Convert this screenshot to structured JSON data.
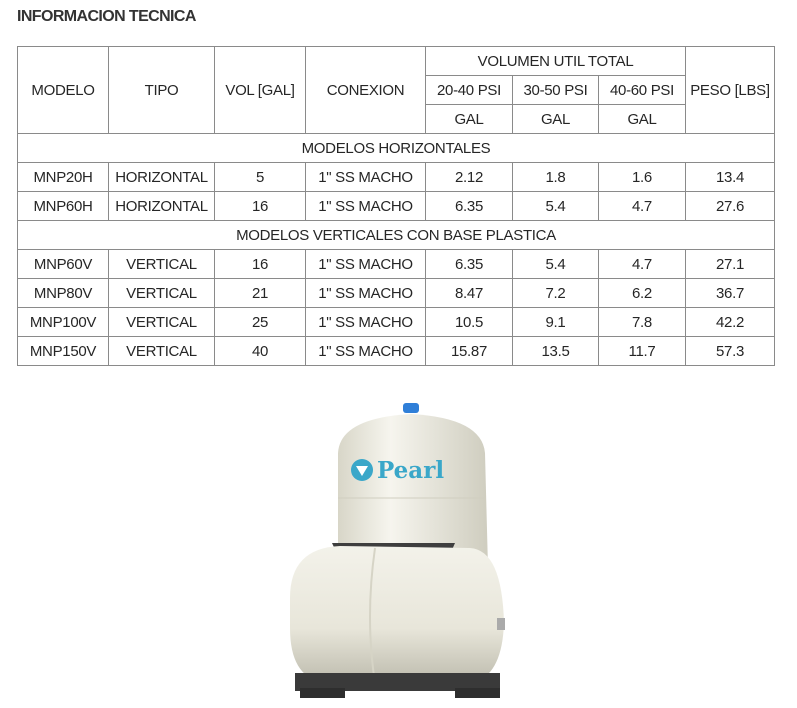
{
  "title": "INFORMACION TECNICA",
  "table": {
    "headers": {
      "modelo": "MODELO",
      "tipo": "TIPO",
      "vol": "VOL [GAL]",
      "conexion": "CONEXION",
      "volumen_util": "VOLUMEN UTIL TOTAL",
      "psi": [
        "20-40 PSI",
        "30-50 PSI",
        "40-60 PSI"
      ],
      "units": [
        "GAL",
        "GAL",
        "GAL"
      ],
      "peso": "PESO [LBS]"
    },
    "groups": [
      {
        "label": "MODELOS HORIZONTALES",
        "rows": [
          [
            "MNP20H",
            "HORIZONTAL",
            "5",
            "1\" SS MACHO",
            "2.12",
            "1.8",
            "1.6",
            "13.4"
          ],
          [
            "MNP60H",
            "HORIZONTAL",
            "16",
            "1\" SS MACHO",
            "6.35",
            "5.4",
            "4.7",
            "27.6"
          ]
        ]
      },
      {
        "label": "MODELOS VERTICALES CON BASE PLASTICA",
        "rows": [
          [
            "MNP60V",
            "VERTICAL",
            "16",
            "1\" SS MACHO",
            "6.35",
            "5.4",
            "4.7",
            "27.1"
          ],
          [
            "MNP80V",
            "VERTICAL",
            "21",
            "1\" SS MACHO",
            "8.47",
            "7.2",
            "6.2",
            "36.7"
          ],
          [
            "MNP100V",
            "VERTICAL",
            "25",
            "1\" SS MACHO",
            "10.5",
            "9.1",
            "7.8",
            "42.2"
          ],
          [
            "MNP150V",
            "VERTICAL",
            "40",
            "1\" SS MACHO",
            "15.87",
            "13.5",
            "11.7",
            "57.3"
          ]
        ]
      }
    ]
  },
  "product_image": {
    "logo_text": "Pearl",
    "logo_color": "#3aa7c9",
    "tank_color": "#efede2"
  }
}
